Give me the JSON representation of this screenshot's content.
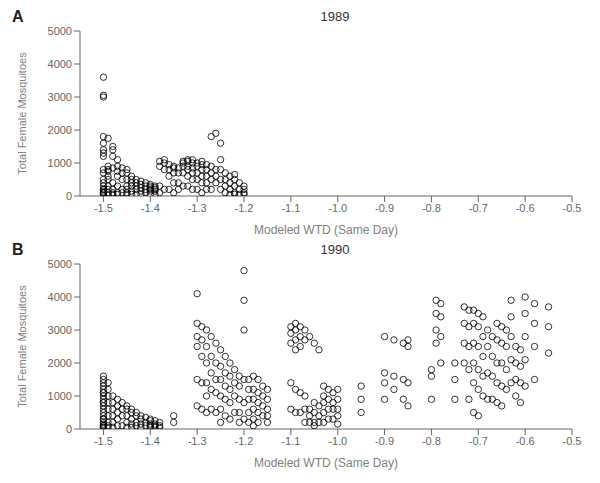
{
  "chart_data": [
    {
      "type": "scatter",
      "title": "1989",
      "annotations": [
        "A"
      ],
      "xlabel": "Modeled WTD (Same Day)",
      "ylabel": "Total Female Mosquitoes",
      "xlim": [
        -1.55,
        -0.5
      ],
      "ylim": [
        0,
        5000
      ],
      "xticks": [
        -1.5,
        -1.4,
        -1.3,
        -1.2,
        -1.1,
        {
          "value": -1.0,
          "label": "-1.0"
        },
        -0.9,
        -0.8,
        -0.7,
        -0.6,
        -0.5
      ],
      "yticks": [
        0,
        1000,
        2000,
        3000,
        4000,
        5000
      ],
      "grid": false,
      "color": "#000000",
      "marker": "circle",
      "x": [
        -1.5,
        -1.5,
        -1.5,
        -1.5,
        -1.5,
        -1.5,
        -1.5,
        -1.5,
        -1.5,
        -1.5,
        -1.5,
        -1.5,
        -1.5,
        -1.5,
        -1.5,
        -1.5,
        -1.5,
        -1.5,
        -1.5,
        -1.5,
        -1.49,
        -1.49,
        -1.49,
        -1.49,
        -1.49,
        -1.49,
        -1.49,
        -1.49,
        -1.49,
        -1.49,
        -1.48,
        -1.48,
        -1.48,
        -1.48,
        -1.48,
        -1.48,
        -1.48,
        -1.48,
        -1.47,
        -1.47,
        -1.47,
        -1.47,
        -1.47,
        -1.47,
        -1.47,
        -1.46,
        -1.46,
        -1.46,
        -1.46,
        -1.46,
        -1.45,
        -1.45,
        -1.45,
        -1.45,
        -1.45,
        -1.45,
        -1.45,
        -1.44,
        -1.44,
        -1.44,
        -1.44,
        -1.44,
        -1.44,
        -1.43,
        -1.43,
        -1.43,
        -1.43,
        -1.43,
        -1.42,
        -1.42,
        -1.42,
        -1.42,
        -1.42,
        -1.41,
        -1.41,
        -1.41,
        -1.41,
        -1.4,
        -1.4,
        -1.4,
        -1.4,
        -1.4,
        -1.4,
        -1.39,
        -1.39,
        -1.39,
        -1.39,
        -1.39,
        -1.38,
        -1.38,
        -1.38,
        -1.38,
        -1.37,
        -1.37,
        -1.37,
        -1.37,
        -1.36,
        -1.36,
        -1.36,
        -1.36,
        -1.35,
        -1.35,
        -1.35,
        -1.35,
        -1.35,
        -1.34,
        -1.34,
        -1.34,
        -1.34,
        -1.33,
        -1.33,
        -1.33,
        -1.33,
        -1.33,
        -1.32,
        -1.32,
        -1.32,
        -1.32,
        -1.32,
        -1.32,
        -1.31,
        -1.31,
        -1.31,
        -1.31,
        -1.31,
        -1.31,
        -1.3,
        -1.3,
        -1.3,
        -1.3,
        -1.3,
        -1.29,
        -1.29,
        -1.29,
        -1.29,
        -1.29,
        -1.29,
        -1.28,
        -1.28,
        -1.28,
        -1.28,
        -1.28,
        -1.27,
        -1.27,
        -1.27,
        -1.27,
        -1.27,
        -1.26,
        -1.26,
        -1.26,
        -1.26,
        -1.25,
        -1.25,
        -1.25,
        -1.25,
        -1.25,
        -1.24,
        -1.24,
        -1.24,
        -1.24,
        -1.23,
        -1.23,
        -1.23,
        -1.23,
        -1.22,
        -1.22,
        -1.22,
        -1.22,
        -1.22,
        -1.21,
        -1.21,
        -1.21,
        -1.2,
        -1.2,
        -1.2,
        -1.2
      ],
      "values": [
        3600,
        100,
        200,
        50,
        150,
        300,
        500,
        700,
        100,
        800,
        3050,
        3000,
        1800,
        1600,
        1400,
        1300,
        1200,
        200,
        400,
        100,
        1750,
        900,
        800,
        750,
        600,
        500,
        200,
        50,
        100,
        300,
        1500,
        1400,
        1200,
        850,
        400,
        200,
        100,
        50,
        1100,
        900,
        750,
        600,
        300,
        100,
        50,
        850,
        700,
        500,
        200,
        100,
        800,
        700,
        500,
        300,
        200,
        100,
        50,
        600,
        500,
        400,
        300,
        150,
        50,
        500,
        400,
        300,
        200,
        50,
        450,
        350,
        250,
        150,
        50,
        400,
        300,
        200,
        100,
        350,
        300,
        250,
        200,
        150,
        50,
        300,
        250,
        200,
        150,
        50,
        1050,
        900,
        300,
        100,
        1100,
        1000,
        800,
        200,
        950,
        800,
        600,
        200,
        900,
        850,
        700,
        400,
        100,
        850,
        700,
        400,
        200,
        1050,
        1000,
        900,
        700,
        300,
        1100,
        1050,
        900,
        800,
        600,
        300,
        1100,
        1000,
        850,
        700,
        500,
        200,
        1000,
        900,
        700,
        500,
        200,
        1050,
        950,
        800,
        600,
        400,
        100,
        950,
        800,
        600,
        400,
        200,
        1800,
        900,
        700,
        500,
        200,
        1900,
        800,
        600,
        400,
        1600,
        1100,
        800,
        500,
        200,
        700,
        500,
        300,
        100,
        600,
        400,
        200,
        50,
        650,
        500,
        300,
        100,
        50,
        400,
        200,
        50,
        300,
        200,
        100,
        50
      ]
    },
    {
      "type": "scatter",
      "title": "1990",
      "annotations": [
        "B"
      ],
      "xlabel": "Modeled WTD (Same Day)",
      "ylabel": "Total Female Mosquitoes",
      "xlim": [
        -1.55,
        -0.5
      ],
      "ylim": [
        0,
        5000
      ],
      "xticks": [
        -1.5,
        -1.4,
        -1.3,
        -1.2,
        -1.1,
        {
          "value": -1.0,
          "label": "-1.0"
        },
        -0.9,
        -0.8,
        -0.7,
        -0.6,
        -0.5
      ],
      "yticks": [
        0,
        1000,
        2000,
        3000,
        4000,
        5000
      ],
      "grid": false,
      "color": "#000000",
      "marker": "circle",
      "x": [
        -1.5,
        -1.5,
        -1.5,
        -1.5,
        -1.5,
        -1.5,
        -1.5,
        -1.5,
        -1.5,
        -1.5,
        -1.5,
        -1.5,
        -1.5,
        -1.5,
        -1.5,
        -1.5,
        -1.5,
        -1.5,
        -1.5,
        -1.5,
        -1.5,
        -1.5,
        -1.5,
        -1.49,
        -1.49,
        -1.49,
        -1.49,
        -1.49,
        -1.49,
        -1.49,
        -1.49,
        -1.49,
        -1.48,
        -1.48,
        -1.48,
        -1.48,
        -1.48,
        -1.48,
        -1.47,
        -1.47,
        -1.47,
        -1.47,
        -1.47,
        -1.46,
        -1.46,
        -1.46,
        -1.46,
        -1.45,
        -1.45,
        -1.45,
        -1.45,
        -1.45,
        -1.44,
        -1.44,
        -1.44,
        -1.44,
        -1.44,
        -1.43,
        -1.43,
        -1.43,
        -1.43,
        -1.42,
        -1.42,
        -1.42,
        -1.42,
        -1.41,
        -1.41,
        -1.41,
        -1.4,
        -1.4,
        -1.4,
        -1.4,
        -1.4,
        -1.39,
        -1.39,
        -1.39,
        -1.39,
        -1.38,
        -1.38,
        -1.38,
        -1.35,
        -1.35,
        -1.3,
        -1.3,
        -1.3,
        -1.3,
        -1.3,
        -1.3,
        -1.29,
        -1.29,
        -1.29,
        -1.29,
        -1.29,
        -1.28,
        -1.28,
        -1.28,
        -1.28,
        -1.28,
        -1.28,
        -1.27,
        -1.27,
        -1.27,
        -1.27,
        -1.27,
        -1.26,
        -1.26,
        -1.26,
        -1.26,
        -1.26,
        -1.25,
        -1.25,
        -1.25,
        -1.25,
        -1.25,
        -1.25,
        -1.24,
        -1.24,
        -1.24,
        -1.24,
        -1.24,
        -1.23,
        -1.23,
        -1.23,
        -1.23,
        -1.23,
        -1.22,
        -1.22,
        -1.22,
        -1.22,
        -1.21,
        -1.21,
        -1.21,
        -1.21,
        -1.21,
        -1.2,
        -1.2,
        -1.2,
        -1.2,
        -1.2,
        -1.2,
        -1.19,
        -1.19,
        -1.19,
        -1.19,
        -1.19,
        -1.18,
        -1.18,
        -1.18,
        -1.18,
        -1.18,
        -1.18,
        -1.17,
        -1.17,
        -1.17,
        -1.17,
        -1.17,
        -1.16,
        -1.16,
        -1.16,
        -1.16,
        -1.15,
        -1.15,
        -1.15,
        -1.15,
        -1.15,
        -1.1,
        -1.1,
        -1.1,
        -1.1,
        -1.1,
        -1.09,
        -1.09,
        -1.09,
        -1.09,
        -1.09,
        -1.09,
        -1.08,
        -1.08,
        -1.08,
        -1.08,
        -1.08,
        -1.07,
        -1.07,
        -1.07,
        -1.07,
        -1.07,
        -1.06,
        -1.06,
        -1.06,
        -1.06,
        -1.05,
        -1.05,
        -1.05,
        -1.05,
        -1.05,
        -1.04,
        -1.04,
        -1.04,
        -1.04,
        -1.03,
        -1.03,
        -1.03,
        -1.03,
        -1.03,
        -1.02,
        -1.02,
        -1.02,
        -1.02,
        -1.01,
        -1.01,
        -1.01,
        -1.01,
        -1.0,
        -1.0,
        -1.0,
        -1.0,
        -1.0,
        -0.95,
        -0.95,
        -0.95,
        -0.9,
        -0.9,
        -0.9,
        -0.9,
        -0.88,
        -0.88,
        -0.88,
        -0.86,
        -0.86,
        -0.86,
        -0.85,
        -0.85,
        -0.85,
        -0.85,
        -0.8,
        -0.8,
        -0.8,
        -0.79,
        -0.79,
        -0.79,
        -0.79,
        -0.78,
        -0.78,
        -0.78,
        -0.78,
        -0.75,
        -0.75,
        -0.75,
        -0.73,
        -0.73,
        -0.73,
        -0.73,
        -0.72,
        -0.72,
        -0.72,
        -0.72,
        -0.72,
        -0.71,
        -0.71,
        -0.71,
        -0.71,
        -0.71,
        -0.71,
        -0.7,
        -0.7,
        -0.7,
        -0.7,
        -0.7,
        -0.7,
        -0.69,
        -0.69,
        -0.69,
        -0.69,
        -0.69,
        -0.68,
        -0.68,
        -0.68,
        -0.68,
        -0.67,
        -0.67,
        -0.67,
        -0.67,
        -0.66,
        -0.66,
        -0.66,
        -0.66,
        -0.66,
        -0.65,
        -0.65,
        -0.65,
        -0.65,
        -0.65,
        -0.64,
        -0.64,
        -0.64,
        -0.64,
        -0.63,
        -0.63,
        -0.63,
        -0.63,
        -0.63,
        -0.62,
        -0.62,
        -0.62,
        -0.62,
        -0.61,
        -0.61,
        -0.61,
        -0.61,
        -0.6,
        -0.6,
        -0.6,
        -0.6,
        -0.6,
        -0.58,
        -0.58,
        -0.58,
        -0.58,
        -0.55,
        -0.55,
        -0.55
      ],
      "values": [
        1500,
        1400,
        1300,
        1200,
        1100,
        1000,
        900,
        800,
        700,
        600,
        500,
        400,
        300,
        200,
        100,
        50,
        1600,
        1100,
        800,
        300,
        150,
        100,
        50,
        1400,
        1200,
        1000,
        800,
        600,
        400,
        200,
        100,
        50,
        1000,
        800,
        600,
        400,
        200,
        50,
        900,
        700,
        500,
        300,
        100,
        800,
        600,
        400,
        100,
        700,
        600,
        400,
        200,
        50,
        600,
        500,
        300,
        150,
        50,
        500,
        400,
        200,
        100,
        400,
        300,
        150,
        50,
        350,
        200,
        100,
        300,
        250,
        150,
        100,
        50,
        250,
        150,
        100,
        50,
        200,
        100,
        50,
        400,
        200,
        4100,
        3200,
        2800,
        2500,
        1500,
        700,
        3100,
        2700,
        2200,
        1400,
        600,
        3000,
        2500,
        2000,
        1400,
        1000,
        500,
        2800,
        2200,
        1700,
        1200,
        600,
        2600,
        2000,
        1500,
        1100,
        500,
        2400,
        1900,
        1500,
        1000,
        600,
        200,
        2200,
        1700,
        1300,
        900,
        400,
        2000,
        1600,
        1200,
        800,
        300,
        1800,
        1400,
        1000,
        500,
        1600,
        1300,
        900,
        500,
        200,
        4800,
        3900,
        3000,
        1500,
        800,
        300,
        1500,
        1200,
        900,
        500,
        200,
        1600,
        1200,
        900,
        600,
        300,
        100,
        1500,
        1100,
        800,
        500,
        200,
        1300,
        1000,
        700,
        400,
        1200,
        900,
        600,
        400,
        200,
        3100,
        2900,
        2600,
        1400,
        600,
        3200,
        3000,
        2700,
        2400,
        1200,
        500,
        3100,
        2800,
        2500,
        1100,
        500,
        3000,
        2700,
        1000,
        600,
        200,
        2800,
        600,
        400,
        200,
        2600,
        800,
        500,
        200,
        100,
        2400,
        700,
        400,
        200,
        1300,
        1000,
        800,
        500,
        200,
        1200,
        900,
        600,
        300,
        1100,
        800,
        600,
        300,
        1200,
        900,
        600,
        400,
        150,
        1300,
        900,
        500,
        2800,
        1700,
        1400,
        900,
        2700,
        1600,
        1200,
        2600,
        1500,
        900,
        2700,
        2500,
        1400,
        700,
        1800,
        1600,
        900,
        3900,
        3500,
        3000,
        2600,
        3800,
        3400,
        2800,
        2000,
        2000,
        1500,
        900,
        3700,
        3200,
        2600,
        2000,
        3600,
        3100,
        2500,
        1800,
        900,
        3600,
        3200,
        2600,
        2000,
        1400,
        500,
        3500,
        3100,
        2500,
        1800,
        1200,
        400,
        3400,
        2800,
        2200,
        1600,
        1000,
        3000,
        2500,
        1700,
        900,
        2800,
        2200,
        1600,
        900,
        3200,
        2700,
        2000,
        1400,
        800,
        3100,
        2600,
        2000,
        1300,
        700,
        3000,
        2500,
        1800,
        1200,
        3900,
        3400,
        2800,
        2100,
        1400,
        2500,
        2000,
        1500,
        1000,
        2400,
        1900,
        1400,
        800,
        4000,
        3500,
        2800,
        2100,
        1300,
        3800,
        3200,
        2500,
        1500,
        3700,
        3100,
        2300
      ]
    }
  ]
}
